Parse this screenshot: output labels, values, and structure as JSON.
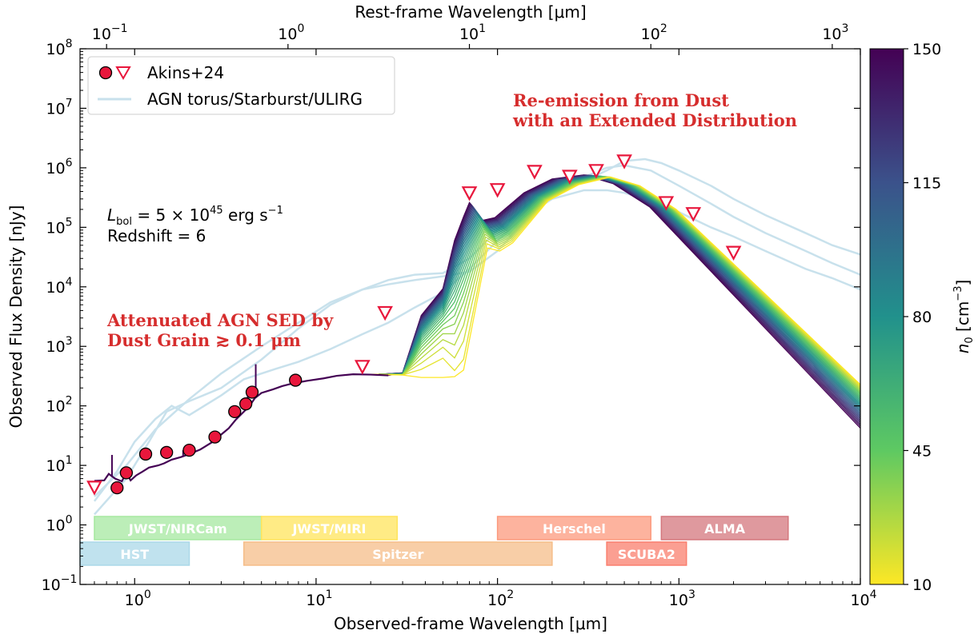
{
  "chart_data": {
    "type": "line",
    "scale": "log-log",
    "xlabel_bottom": "Observed-frame Wavelength [μm]",
    "xlabel_top": "Rest-frame Wavelength [μm]",
    "ylabel": "Observed Flux Density [nJy]",
    "xlim": [
      0.5,
      10000
    ],
    "ylim": [
      0.1,
      100000000
    ],
    "top_xlim": [
      0.0714,
      1428.6
    ],
    "bottom_ticks": [
      {
        "v": 1,
        "mant": "10",
        "exp": "0"
      },
      {
        "v": 10,
        "mant": "10",
        "exp": "1"
      },
      {
        "v": 100,
        "mant": "10",
        "exp": "2"
      },
      {
        "v": 1000,
        "mant": "10",
        "exp": "3"
      },
      {
        "v": 10000,
        "mant": "10",
        "exp": "4"
      }
    ],
    "top_ticks": [
      {
        "v": 0.1,
        "mant": "10",
        "exp": "−1"
      },
      {
        "v": 1,
        "mant": "10",
        "exp": "0"
      },
      {
        "v": 10,
        "mant": "10",
        "exp": "1"
      },
      {
        "v": 100,
        "mant": "10",
        "exp": "2"
      },
      {
        "v": 1000,
        "mant": "10",
        "exp": "3"
      }
    ],
    "y_ticks": [
      {
        "v": 0.1,
        "mant": "10",
        "exp": "−1"
      },
      {
        "v": 1,
        "mant": "10",
        "exp": "0"
      },
      {
        "v": 10,
        "mant": "10",
        "exp": "1"
      },
      {
        "v": 100,
        "mant": "10",
        "exp": "2"
      },
      {
        "v": 1000,
        "mant": "10",
        "exp": "3"
      },
      {
        "v": 10000,
        "mant": "10",
        "exp": "4"
      },
      {
        "v": 100000,
        "mant": "10",
        "exp": "5"
      },
      {
        "v": 1000000,
        "mant": "10",
        "exp": "6"
      },
      {
        "v": 10000000,
        "mant": "10",
        "exp": "7"
      },
      {
        "v": 100000000,
        "mant": "10",
        "exp": "8"
      }
    ],
    "legend": {
      "placement": "top-left",
      "entries": [
        "Akins+24",
        "AGN torus/Starburst/ULIRG"
      ]
    },
    "detections": [
      {
        "x": 0.8,
        "y": 4.2
      },
      {
        "x": 0.9,
        "y": 7.5
      },
      {
        "x": 1.15,
        "y": 15.5
      },
      {
        "x": 1.5,
        "y": 16.5
      },
      {
        "x": 2.0,
        "y": 18
      },
      {
        "x": 2.77,
        "y": 30
      },
      {
        "x": 3.56,
        "y": 80
      },
      {
        "x": 4.1,
        "y": 108
      },
      {
        "x": 4.44,
        "y": 170
      },
      {
        "x": 7.7,
        "y": 270
      }
    ],
    "upper_limits": [
      {
        "x": 0.6,
        "y": 4.3
      },
      {
        "x": 18,
        "y": 460
      },
      {
        "x": 24,
        "y": 3700
      },
      {
        "x": 70,
        "y": 380000
      },
      {
        "x": 100,
        "y": 430000
      },
      {
        "x": 160,
        "y": 870000
      },
      {
        "x": 250,
        "y": 720000
      },
      {
        "x": 350,
        "y": 900000
      },
      {
        "x": 500,
        "y": 1300000
      },
      {
        "x": 850,
        "y": 260000
      },
      {
        "x": 1200,
        "y": 170000
      },
      {
        "x": 2000,
        "y": 38000
      }
    ],
    "base_agn_sed": [
      [
        0.6,
        5.5
      ],
      [
        0.68,
        5.6
      ],
      [
        0.72,
        7.2
      ],
      [
        0.78,
        6.0
      ],
      [
        0.85,
        5.4
      ],
      [
        0.9,
        7.5
      ],
      [
        0.95,
        5.6
      ],
      [
        1.02,
        6.8
      ],
      [
        1.1,
        7.8
      ],
      [
        1.2,
        9.2
      ],
      [
        1.35,
        10.0
      ],
      [
        1.45,
        10.8
      ],
      [
        1.6,
        12.5
      ],
      [
        1.8,
        13.8
      ],
      [
        2.0,
        15.5
      ],
      [
        2.3,
        18.5
      ],
      [
        2.7,
        25
      ],
      [
        3.0,
        33
      ],
      [
        3.3,
        42
      ],
      [
        3.6,
        58
      ],
      [
        4.0,
        80
      ],
      [
        4.3,
        100
      ],
      [
        4.6,
        135
      ],
      [
        5.0,
        165
      ],
      [
        5.8,
        190
      ],
      [
        6.5,
        215
      ],
      [
        7.5,
        240
      ],
      [
        9,
        265
      ],
      [
        11,
        290
      ],
      [
        13,
        320
      ],
      [
        16,
        340
      ],
      [
        20,
        335
      ],
      [
        25,
        325
      ]
    ],
    "templates": [
      [
        [
          0.6,
          2.5
        ],
        [
          0.8,
          8
        ],
        [
          1.0,
          25
        ],
        [
          1.3,
          60
        ],
        [
          1.6,
          100
        ],
        [
          2,
          70
        ],
        [
          3,
          150
        ],
        [
          4,
          280
        ],
        [
          6,
          420
        ],
        [
          8,
          550
        ],
        [
          12,
          900
        ],
        [
          18,
          1600
        ],
        [
          25,
          2500
        ],
        [
          35,
          4500
        ],
        [
          50,
          8000
        ],
        [
          70,
          20000
        ],
        [
          100,
          60000
        ],
        [
          140,
          150000
        ],
        [
          200,
          300000
        ],
        [
          300,
          420000
        ],
        [
          400,
          420000
        ],
        [
          500,
          380000
        ],
        [
          700,
          280000
        ],
        [
          1000,
          180000
        ],
        [
          1500,
          100000
        ],
        [
          2000,
          70000
        ],
        [
          3000,
          40000
        ],
        [
          5000,
          20000
        ],
        [
          7000,
          14000
        ],
        [
          10000,
          9000
        ]
      ],
      [
        [
          0.6,
          1.5
        ],
        [
          0.9,
          6
        ],
        [
          1.2,
          25
        ],
        [
          1.5,
          80
        ],
        [
          2,
          120
        ],
        [
          3,
          200
        ],
        [
          5,
          600
        ],
        [
          8,
          2000
        ],
        [
          12,
          5000
        ],
        [
          18,
          9000
        ],
        [
          25,
          13000
        ],
        [
          35,
          16000
        ],
        [
          50,
          17000
        ],
        [
          70,
          30000
        ],
        [
          100,
          90000
        ],
        [
          140,
          220000
        ],
        [
          200,
          380000
        ],
        [
          300,
          600000
        ],
        [
          400,
          900000
        ],
        [
          500,
          1300000
        ],
        [
          650,
          1400000
        ],
        [
          800,
          1200000
        ],
        [
          1000,
          900000
        ],
        [
          1500,
          500000
        ],
        [
          2000,
          300000
        ],
        [
          3000,
          160000
        ],
        [
          5000,
          80000
        ],
        [
          7000,
          50000
        ],
        [
          10000,
          35000
        ]
      ],
      [
        [
          0.6,
          3
        ],
        [
          0.9,
          10
        ],
        [
          1.3,
          40
        ],
        [
          2,
          130
        ],
        [
          3,
          350
        ],
        [
          5,
          1000
        ],
        [
          8,
          2500
        ],
        [
          12,
          5500
        ],
        [
          18,
          9000
        ],
        [
          25,
          11000
        ],
        [
          35,
          13000
        ],
        [
          50,
          15000
        ],
        [
          70,
          18000
        ],
        [
          100,
          40000
        ],
        [
          150,
          150000
        ],
        [
          200,
          400000
        ],
        [
          300,
          700000
        ],
        [
          400,
          1000000
        ],
        [
          500,
          1100000
        ],
        [
          700,
          900000
        ],
        [
          1000,
          500000
        ],
        [
          1500,
          250000
        ],
        [
          2000,
          150000
        ],
        [
          3000,
          80000
        ],
        [
          5000,
          40000
        ],
        [
          7000,
          25000
        ],
        [
          10000,
          16000
        ]
      ]
    ],
    "instruments": [
      {
        "label": "JWST/NIRCam",
        "x0": 0.6,
        "x1": 5.0,
        "row": 1,
        "color": "#a6e8a0"
      },
      {
        "label": "JWST/MIRI",
        "x0": 5.0,
        "x1": 28,
        "row": 1,
        "color": "#ffe45c"
      },
      {
        "label": "Herschel",
        "x0": 100,
        "x1": 700,
        "row": 1,
        "color": "#fc9a7e"
      },
      {
        "label": "ALMA",
        "x0": 800,
        "x1": 4000,
        "row": 1,
        "color": "#d4777d"
      },
      {
        "label": "HST",
        "x0": 0.5,
        "x1": 2.0,
        "row": 2,
        "color": "#abd8e8"
      },
      {
        "label": "Spitzer",
        "x0": 4.0,
        "x1": 200,
        "row": 2,
        "color": "#f5bd89"
      },
      {
        "label": "SCUBA2",
        "x0": 400,
        "x1": 1100,
        "row": 2,
        "color": "#fa7f6e"
      }
    ],
    "colorbar": {
      "label_sym": "n",
      "label_sub": "0",
      "label_unit": " [cm",
      "label_exp": "−3",
      "label_close": "]",
      "min": 10,
      "max": 150,
      "ticks": [
        10,
        45,
        80,
        115,
        150
      ],
      "colormap": "viridis"
    },
    "model_curve_count": 28,
    "annotations": {
      "luminosity_sym": "L",
      "luminosity_sub": "bol",
      "luminosity_eq": " = 5 × 10",
      "luminosity_exp": "45",
      "luminosity_unit": " erg s",
      "luminosity_unit_exp": "−1",
      "redshift": "Redshift = 6",
      "agn_line1": "Attenuated AGN SED by",
      "agn_line2": "Dust Grain ≳ 0.1 μm",
      "dust_line1": "Re-emission from Dust",
      "dust_line2": "with an Extended Distribution"
    },
    "colors": {
      "detection_fill": "#e8173c",
      "limit_edge": "#e8173c",
      "template_line": "#c8e1ec",
      "annotation_red": "#d62d2d"
    }
  }
}
